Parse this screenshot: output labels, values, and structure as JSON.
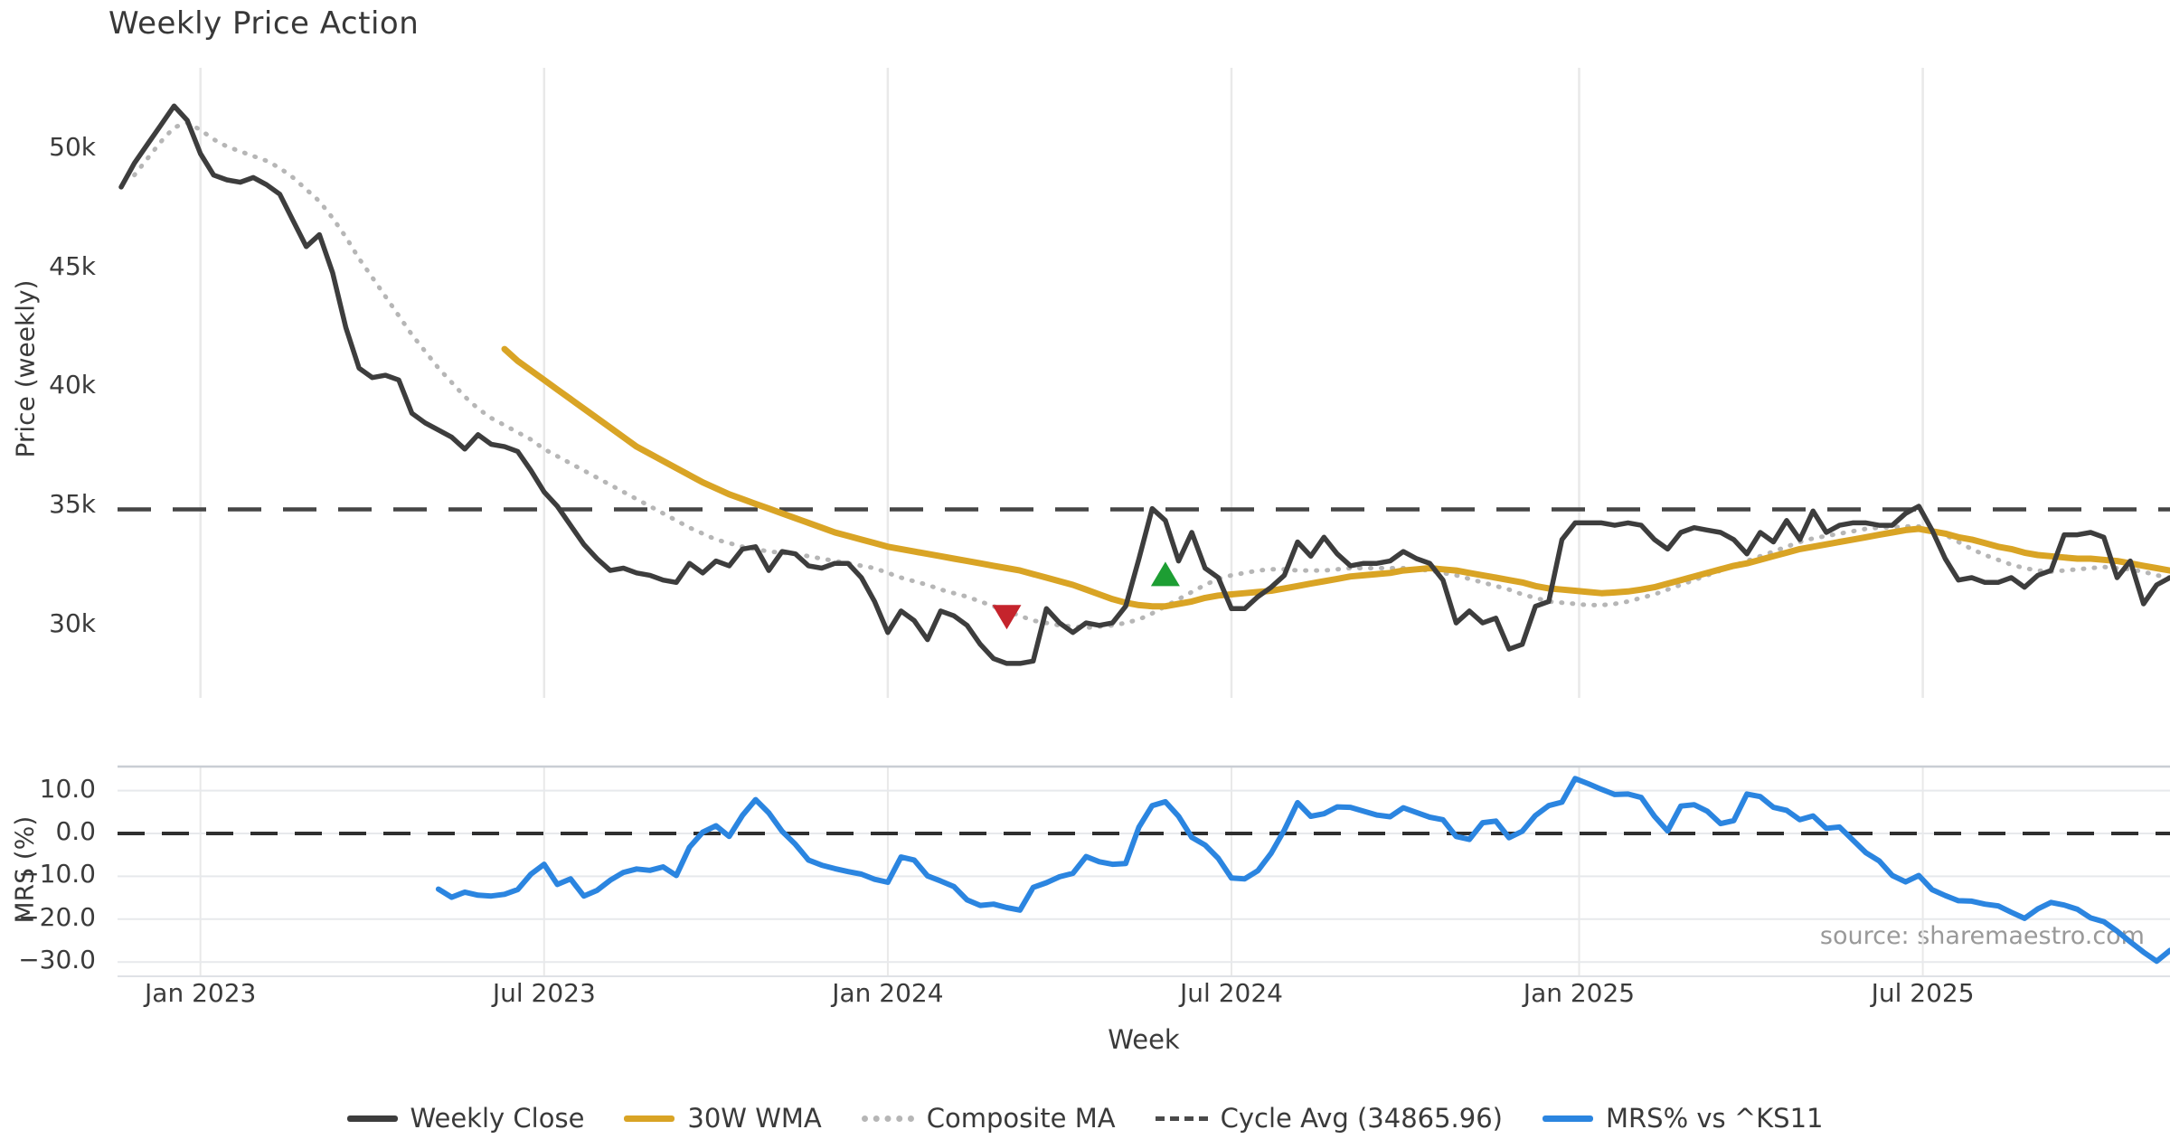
{
  "title": "Weekly Price Action",
  "source_note": "source: sharemaestro.com",
  "axes": {
    "price_label": "Price (weekly)",
    "mrs_label": "MRS (%)",
    "x_label": "Week",
    "price_ticks": [
      {
        "label": "50k",
        "value": 50
      },
      {
        "label": "45k",
        "value": 45
      },
      {
        "label": "40k",
        "value": 40
      },
      {
        "label": "35k",
        "value": 35
      },
      {
        "label": "30k",
        "value": 30
      }
    ],
    "mrs_ticks": [
      {
        "label": "10.0",
        "value": 10
      },
      {
        "label": "0.0",
        "value": 0
      },
      {
        "label": "−10.0",
        "value": -10
      },
      {
        "label": "−20.0",
        "value": -20
      },
      {
        "label": "−30.0",
        "value": -30
      }
    ],
    "x_ticks": [
      {
        "label": "Jan 2023",
        "week": 6
      },
      {
        "label": "Jul 2023",
        "week": 32
      },
      {
        "label": "Jan 2024",
        "week": 58
      },
      {
        "label": "Jul 2024",
        "week": 84
      },
      {
        "label": "Jan 2025",
        "week": 110.3
      },
      {
        "label": "Jul 2025",
        "week": 136.3
      }
    ]
  },
  "legend": [
    {
      "label": "Weekly Close",
      "swatch": "solid",
      "color": "#3d3d3d"
    },
    {
      "label": "30W WMA",
      "swatch": "solid",
      "color": "#d9a425"
    },
    {
      "label": "Composite MA",
      "swatch": "dotted",
      "color": "#b6b6b6"
    },
    {
      "label": "Cycle Avg (34865.96)",
      "swatch": "dashed",
      "color": "#4a4a4a"
    },
    {
      "label": "MRS% vs ^KS11",
      "swatch": "solid",
      "color": "#2b85e0"
    }
  ],
  "chart_data": {
    "type": "line",
    "x_unit": "week-index",
    "values_unit_price": "thousands",
    "price_ylim_k": [
      27.0,
      53.5
    ],
    "mrs_ylim": [
      -33.5,
      15.5
    ],
    "grid": "vertical-date-lines-top-panel, horizontal-lines-bottom-panel",
    "legend_position": "bottom-center",
    "cycle_avg": 34865.96,
    "series": [
      {
        "name": "Weekly Close",
        "panel": "price",
        "style": "solid",
        "color": "#3d3d3d",
        "start_week": 0,
        "values_k": [
          48.4,
          49.4,
          50.2,
          51.0,
          51.8,
          51.2,
          49.8,
          48.9,
          48.7,
          48.6,
          48.8,
          48.5,
          48.1,
          47.0,
          45.9,
          46.4,
          44.8,
          42.5,
          40.8,
          40.4,
          40.5,
          40.3,
          38.9,
          38.5,
          38.2,
          37.9,
          37.4,
          38.0,
          37.6,
          37.5,
          37.3,
          36.5,
          35.6,
          35.0,
          34.2,
          33.4,
          32.8,
          32.3,
          32.4,
          32.2,
          32.1,
          31.9,
          31.8,
          32.6,
          32.2,
          32.7,
          32.5,
          33.2,
          33.3,
          32.3,
          33.1,
          33.0,
          32.5,
          32.4,
          32.6,
          32.6,
          32.0,
          31.0,
          29.7,
          30.6,
          30.2,
          29.4,
          30.6,
          30.4,
          30.0,
          29.2,
          28.6,
          28.4,
          28.4,
          28.5,
          30.7,
          30.1,
          29.7,
          30.1,
          30.0,
          30.1,
          30.8,
          32.8,
          34.9,
          34.4,
          32.7,
          33.9,
          32.4,
          32.0,
          30.7,
          30.7,
          31.2,
          31.6,
          32.1,
          33.5,
          32.9,
          33.7,
          33.0,
          32.5,
          32.6,
          32.6,
          32.7,
          33.1,
          32.8,
          32.6,
          31.9,
          30.1,
          30.6,
          30.1,
          30.3,
          29.0,
          29.2,
          30.8,
          31.0,
          33.6,
          34.3,
          34.3,
          34.3,
          34.2,
          34.3,
          34.2,
          33.6,
          33.2,
          33.9,
          34.1,
          34.0,
          33.9,
          33.6,
          33.0,
          33.9,
          33.5,
          34.4,
          33.6,
          34.8,
          33.9,
          34.2,
          34.3,
          34.3,
          34.2,
          34.2,
          34.7,
          35.0,
          34.0,
          32.8,
          31.9,
          32.0,
          31.8,
          31.8,
          32.0,
          31.6,
          32.1,
          32.3,
          33.8,
          33.8,
          33.9,
          33.7,
          32.0,
          32.7,
          30.9,
          31.7,
          32.0
        ]
      },
      {
        "name": "Composite MA",
        "panel": "price",
        "style": "dotted",
        "color": "#b6b6b6",
        "start_week": 1,
        "values_k": [
          48.9,
          49.6,
          50.3,
          50.9,
          51.1,
          50.8,
          50.4,
          50.1,
          49.9,
          49.7,
          49.5,
          49.2,
          48.8,
          48.3,
          47.8,
          47.1,
          46.3,
          45.4,
          44.6,
          43.8,
          43.0,
          42.2,
          41.5,
          40.8,
          40.2,
          39.6,
          39.1,
          38.7,
          38.4,
          38.1,
          37.8,
          37.4,
          37.1,
          36.8,
          36.5,
          36.2,
          35.9,
          35.6,
          35.3,
          35.0,
          34.7,
          34.4,
          34.1,
          33.85,
          33.6,
          33.45,
          33.3,
          33.2,
          33.1,
          33.05,
          33.0,
          32.9,
          32.8,
          32.7,
          32.6,
          32.5,
          32.4,
          32.2,
          32.0,
          31.85,
          31.7,
          31.5,
          31.35,
          31.2,
          31.0,
          30.8,
          30.6,
          30.4,
          30.2,
          30.1,
          30.0,
          29.95,
          29.9,
          29.95,
          30.0,
          30.1,
          30.25,
          30.5,
          30.8,
          31.1,
          31.4,
          31.7,
          31.95,
          32.1,
          32.2,
          32.3,
          32.35,
          32.35,
          32.3,
          32.3,
          32.3,
          32.35,
          32.4,
          32.4,
          32.4,
          32.4,
          32.4,
          32.35,
          32.3,
          32.2,
          32.1,
          31.95,
          31.8,
          31.65,
          31.5,
          31.3,
          31.15,
          31.0,
          30.95,
          30.9,
          30.85,
          30.85,
          30.9,
          31.0,
          31.15,
          31.3,
          31.5,
          31.7,
          31.9,
          32.1,
          32.3,
          32.5,
          32.7,
          32.9,
          33.1,
          33.3,
          33.5,
          33.65,
          33.75,
          33.85,
          33.95,
          34.05,
          34.1,
          34.12,
          34.15,
          34.15,
          34.0,
          33.8,
          33.5,
          33.2,
          32.95,
          32.75,
          32.55,
          32.4,
          32.3,
          32.25,
          32.3,
          32.35,
          32.4,
          32.45,
          32.4,
          32.35,
          32.25,
          32.1,
          32.0
        ]
      },
      {
        "name": "30W WMA",
        "panel": "price",
        "style": "solid",
        "color": "#d9a425",
        "start_week": 29,
        "values_k": [
          41.6,
          41.1,
          40.7,
          40.3,
          39.9,
          39.5,
          39.1,
          38.7,
          38.3,
          37.9,
          37.5,
          37.2,
          36.9,
          36.6,
          36.3,
          36.0,
          35.75,
          35.5,
          35.3,
          35.1,
          34.9,
          34.7,
          34.5,
          34.3,
          34.1,
          33.9,
          33.75,
          33.6,
          33.45,
          33.3,
          33.2,
          33.1,
          33.0,
          32.9,
          32.8,
          32.7,
          32.6,
          32.5,
          32.4,
          32.3,
          32.15,
          32.0,
          31.85,
          31.7,
          31.5,
          31.3,
          31.1,
          30.95,
          30.85,
          30.8,
          30.8,
          30.9,
          31.0,
          31.15,
          31.25,
          31.3,
          31.35,
          31.4,
          31.45,
          31.55,
          31.65,
          31.75,
          31.85,
          31.95,
          32.05,
          32.1,
          32.15,
          32.2,
          32.3,
          32.35,
          32.4,
          32.35,
          32.3,
          32.2,
          32.1,
          32.0,
          31.9,
          31.8,
          31.65,
          31.55,
          31.5,
          31.45,
          31.4,
          31.35,
          31.38,
          31.42,
          31.5,
          31.6,
          31.75,
          31.9,
          32.05,
          32.2,
          32.35,
          32.5,
          32.6,
          32.75,
          32.9,
          33.05,
          33.2,
          33.3,
          33.4,
          33.5,
          33.6,
          33.7,
          33.8,
          33.9,
          34.0,
          34.05,
          33.95,
          33.85,
          33.7,
          33.6,
          33.45,
          33.3,
          33.2,
          33.05,
          32.95,
          32.9,
          32.85,
          32.8,
          32.8,
          32.75,
          32.7,
          32.6,
          32.5,
          32.4,
          32.3
        ]
      },
      {
        "name": "MRS% vs ^KS11",
        "panel": "mrs",
        "style": "solid",
        "color": "#2b85e0",
        "start_week": 24,
        "values": [
          -13.0,
          -14.9,
          -13.7,
          -14.4,
          -14.6,
          -14.2,
          -13.1,
          -9.5,
          -7.2,
          -11.9,
          -10.6,
          -14.6,
          -13.3,
          -10.9,
          -9.1,
          -8.3,
          -8.6,
          -7.8,
          -9.8,
          -3.2,
          0.3,
          1.8,
          -0.7,
          4.2,
          7.9,
          4.8,
          0.5,
          -2.5,
          -6.2,
          -7.4,
          -8.2,
          -8.9,
          -9.5,
          -10.7,
          -11.4,
          -5.5,
          -6.2,
          -9.9,
          -11.1,
          -12.4,
          -15.5,
          -16.8,
          -16.5,
          -17.3,
          -17.9,
          -12.6,
          -11.5,
          -10.1,
          -9.3,
          -5.4,
          -6.6,
          -7.2,
          -7.0,
          1.5,
          6.5,
          7.4,
          4.0,
          -0.9,
          -2.7,
          -5.8,
          -10.4,
          -10.6,
          -8.7,
          -4.6,
          0.8,
          7.2,
          4.0,
          4.6,
          6.2,
          6.1,
          5.2,
          4.3,
          3.9,
          6.0,
          4.9,
          3.8,
          3.2,
          -0.7,
          -1.4,
          2.5,
          2.9,
          -1.0,
          0.5,
          4.2,
          6.5,
          7.3,
          12.8,
          11.6,
          10.3,
          9.1,
          9.2,
          8.4,
          4.0,
          0.6,
          6.4,
          6.7,
          5.2,
          2.3,
          3.0,
          9.2,
          8.6,
          6.1,
          5.4,
          3.2,
          4.1,
          1.2,
          1.5,
          -1.5,
          -4.5,
          -6.4,
          -9.8,
          -11.3,
          -9.8,
          -13.1,
          -14.5,
          -15.7,
          -15.8,
          -16.5,
          -16.9,
          -18.4,
          -19.8,
          -17.6,
          -16.1,
          -16.7,
          -17.7,
          -19.7,
          -20.6,
          -22.8,
          -25.3,
          -27.7,
          -29.8,
          -27.3
        ]
      }
    ],
    "markers": [
      {
        "name": "sell-signal",
        "shape": "triangle-down",
        "color": "#c5242c",
        "week": 67,
        "price_k": 30.4
      },
      {
        "name": "buy-signal",
        "shape": "triangle-up",
        "color": "#1d9e33",
        "week": 79,
        "price_k": 32.1
      }
    ]
  }
}
